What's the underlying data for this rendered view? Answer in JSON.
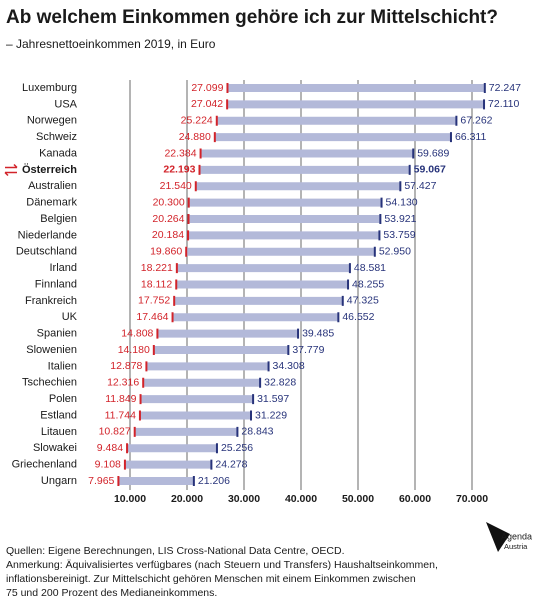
{
  "chart_data": {
    "type": "range",
    "title": "Ab welchem Einkommen gehöre ich zur Mittelschicht?",
    "subtitle": "– Jahresnettoeinkommen 2019, in Euro",
    "categories": [
      "Luxemburg",
      "USA",
      "Norwegen",
      "Schweiz",
      "Kanada",
      "Österreich",
      "Australien",
      "Dänemark",
      "Belgien",
      "Niederlande",
      "Deutschland",
      "Irland",
      "Finnland",
      "Frankreich",
      "UK",
      "Spanien",
      "Slowenien",
      "Italien",
      "Tschechien",
      "Polen",
      "Estland",
      "Litauen",
      "Slowakei",
      "Griechenland",
      "Ungarn"
    ],
    "highlight": 5,
    "bar_color": "#b3b9d9",
    "series": [
      {
        "color": "#d2232a",
        "values": [
          27099,
          27042,
          25224,
          24880,
          22384,
          22193,
          21540,
          20300,
          20264,
          20184,
          19860,
          18221,
          18112,
          17752,
          17464,
          14808,
          14180,
          12878,
          12316,
          11849,
          11744,
          10827,
          9484,
          9108,
          7965
        ],
        "value_labels": [
          "27.099",
          "27.042",
          "25.224",
          "24.880",
          "22.384",
          "22.193",
          "21.540",
          "20.300",
          "20.264",
          "20.184",
          "19.860",
          "18.221",
          "18.112",
          "17.752",
          "17.464",
          "14.808",
          "14.180",
          "12.878",
          "12.316",
          "11.849",
          "11.744",
          "10.827",
          "9.484",
          "9.108",
          "7.965"
        ]
      },
      {
        "color": "#27337a",
        "values": [
          72247,
          72110,
          67262,
          66311,
          59689,
          59067,
          57427,
          54130,
          53921,
          53759,
          52950,
          48581,
          48255,
          47325,
          46552,
          39485,
          37779,
          34308,
          32828,
          31597,
          31229,
          28843,
          25256,
          24278,
          21206
        ],
        "value_labels": [
          "72.247",
          "72.110",
          "67.262",
          "66.311",
          "59.689",
          "59.067",
          "57.427",
          "54.130",
          "53.921",
          "53.759",
          "52.950",
          "48.581",
          "48.255",
          "47.325",
          "46.552",
          "39.485",
          "37.779",
          "34.308",
          "32.828",
          "31.597",
          "31.229",
          "28.843",
          "25.256",
          "24.278",
          "21.206"
        ]
      }
    ],
    "xlim": [
      0,
      80000
    ],
    "xticks": [
      {
        "value": 10000,
        "label": "10.000"
      },
      {
        "value": 20000,
        "label": "20.000"
      },
      {
        "value": 30000,
        "label": "30.000"
      },
      {
        "value": 40000,
        "label": "40.000"
      },
      {
        "value": 50000,
        "label": "50.000"
      },
      {
        "value": 60000,
        "label": "60.000"
      },
      {
        "value": 70000,
        "label": "70.000"
      }
    ],
    "grid": true
  },
  "footer": {
    "source": "Quellen: Eigene Berechnungen, LIS Cross-National Data Centre, OECD.",
    "note_lines": [
      "Anmerkung: Äquivalisiertes verfügbares (nach Steuern und Transfers) Haushaltseinkommen,",
      "inflationsbereinigt. Zur Mittelschicht gehören Menschen mit einem Einkommen zwischen",
      "75 und 200 Prozent des Medianeinkommens."
    ]
  },
  "logo": [
    "Agenda",
    "Austria"
  ]
}
